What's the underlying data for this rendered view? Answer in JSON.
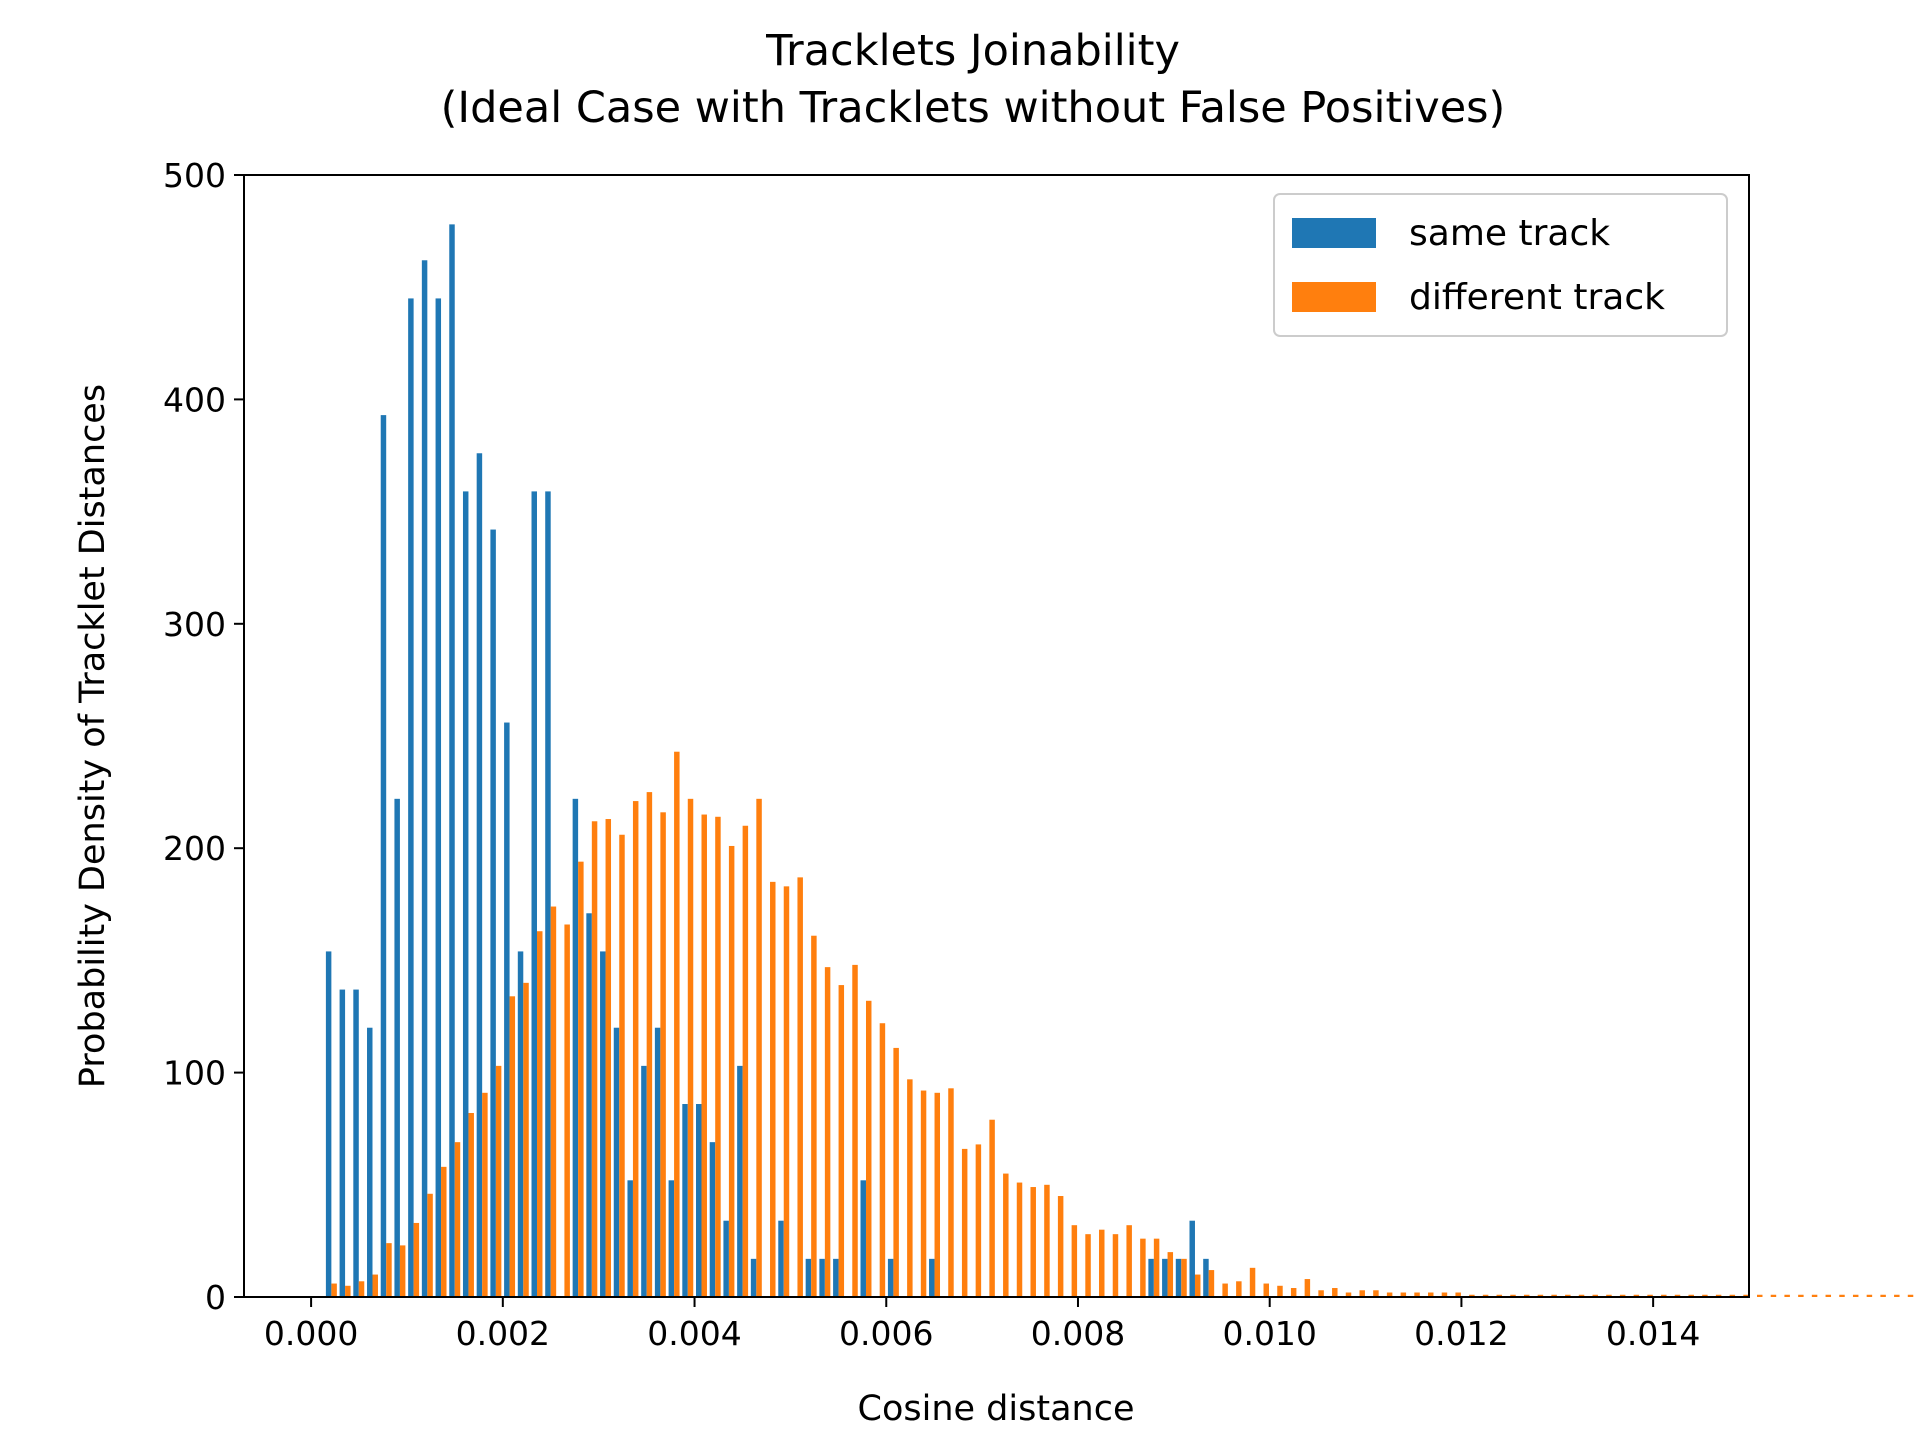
{
  "chart_data": {
    "type": "bar",
    "title": "Tracklets Joinability",
    "subtitle": "(Ideal Case with Tracklets without False Positives)",
    "xlabel": "Cosine distance",
    "ylabel": "Probability Density of Tracklet Distances",
    "xlim": [
      -0.0007,
      0.015
    ],
    "ylim": [
      0,
      500
    ],
    "xticks": [
      0.0,
      0.002,
      0.004,
      0.006,
      0.008,
      0.01,
      0.012,
      0.014
    ],
    "xtick_labels": [
      "0.000",
      "0.002",
      "0.004",
      "0.006",
      "0.008",
      "0.010",
      "0.012",
      "0.014"
    ],
    "yticks": [
      0,
      100,
      200,
      300,
      400,
      500
    ],
    "ytick_labels": [
      "0",
      "100",
      "200",
      "300",
      "400",
      "500"
    ],
    "grid": false,
    "legend_position": "top-right",
    "bin_start": 0.00014,
    "bin_width": 0.000143,
    "series": [
      {
        "name": "same track",
        "color": "#1f77b4",
        "values": [
          154,
          137,
          137,
          120,
          393,
          222,
          445,
          462,
          445,
          478,
          359,
          376,
          342,
          256,
          154,
          359,
          359,
          0,
          222,
          171,
          154,
          120,
          52,
          103,
          120,
          52,
          86,
          86,
          69,
          34,
          103,
          17,
          0,
          34,
          0,
          17,
          17,
          17,
          0,
          52,
          0,
          17,
          0,
          0,
          17,
          0,
          0,
          0,
          0,
          0,
          0,
          0,
          0,
          0,
          0,
          0,
          0,
          0,
          0,
          0,
          17,
          17,
          17,
          34,
          17,
          0,
          0,
          0,
          0,
          0,
          0,
          0,
          0,
          0,
          0,
          0,
          0,
          0,
          0,
          0,
          0,
          0,
          0,
          0,
          0,
          0,
          0,
          0,
          0,
          0,
          0,
          0,
          0,
          0,
          0,
          0,
          0,
          0,
          0,
          0,
          0,
          0,
          0,
          0,
          0,
          0,
          0,
          0,
          0,
          0,
          0,
          0,
          0,
          0,
          0,
          0,
          0,
          0,
          0,
          0
        ]
      },
      {
        "name": "different track",
        "color": "#ff7f0e",
        "values": [
          6,
          5,
          7,
          10,
          24,
          23,
          33,
          46,
          58,
          69,
          82,
          91,
          103,
          134,
          140,
          163,
          174,
          166,
          194,
          212,
          213,
          206,
          221,
          225,
          216,
          243,
          222,
          215,
          214,
          201,
          210,
          222,
          185,
          183,
          187,
          161,
          147,
          139,
          148,
          132,
          122,
          111,
          97,
          92,
          91,
          93,
          66,
          68,
          79,
          55,
          51,
          49,
          50,
          45,
          32,
          28,
          30,
          28,
          32,
          26,
          26,
          20,
          17,
          10,
          12,
          6,
          7,
          13,
          6,
          5,
          4,
          8,
          3,
          4,
          2,
          3,
          3,
          2,
          2,
          2,
          2,
          2,
          2,
          1,
          1,
          1,
          1,
          1,
          1,
          1,
          1,
          1,
          1,
          1,
          1,
          1,
          1,
          1,
          1,
          1,
          1,
          1,
          1,
          1,
          1,
          1,
          1,
          1,
          1,
          1,
          1,
          1,
          1,
          1,
          1,
          1,
          1,
          1,
          1,
          1
        ]
      }
    ]
  }
}
